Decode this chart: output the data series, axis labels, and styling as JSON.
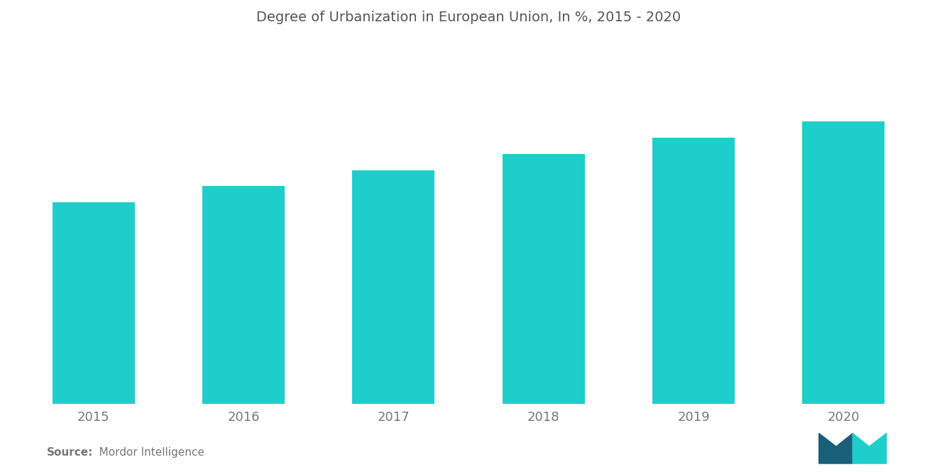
{
  "title": "Degree of Urbanization in European Union, In %, 2015 - 2020",
  "categories": [
    "2015",
    "2016",
    "2017",
    "2018",
    "2019",
    "2020"
  ],
  "values": [
    74.5,
    74.7,
    74.9,
    75.1,
    75.3,
    75.5
  ],
  "bar_color": "#1ECECA",
  "background_color": "#FFFFFF",
  "title_color": "#555555",
  "tick_label_color": "#777777",
  "title_fontsize": 14,
  "tick_fontsize": 13,
  "source_label_bold": "Source:",
  "source_label_normal": "   Mordor Intelligence",
  "source_fontsize": 11,
  "ylim_min": 72,
  "ylim_max": 76.5,
  "bar_width": 0.55,
  "logo_color_left": "#1A5F7A",
  "logo_color_right": "#1ECECA"
}
